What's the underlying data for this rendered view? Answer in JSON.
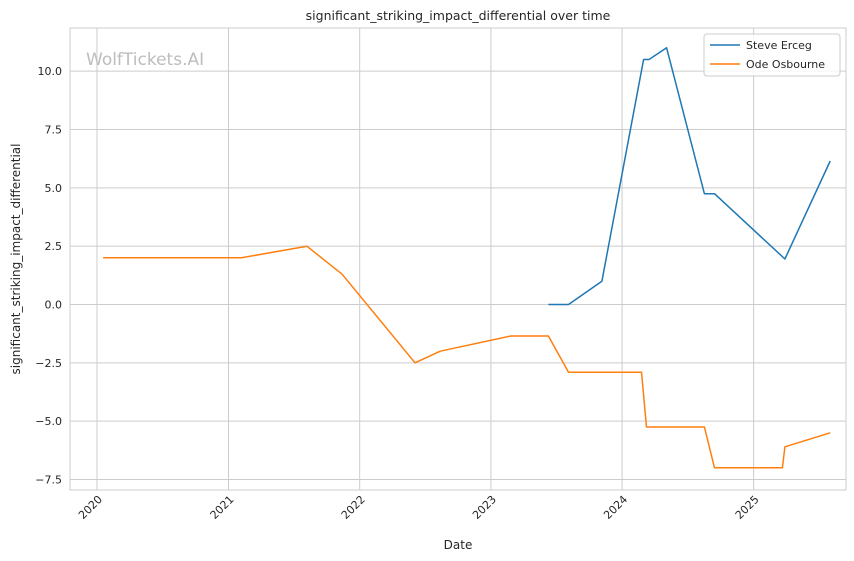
{
  "chart_data": {
    "type": "line",
    "title": "significant_striking_impact_differential over time",
    "xlabel": "Date",
    "ylabel": "significant_striking_impact_differential",
    "watermark": "WolfTickets.AI",
    "x_ticks": [
      "2020",
      "2021",
      "2022",
      "2023",
      "2024",
      "2025"
    ],
    "y_ticks": [
      "10.0",
      "7.5",
      "5.0",
      "2.5",
      "0.0",
      "−2.5",
      "−5.0",
      "−7.5"
    ],
    "xlim": [
      "2019-10-18",
      "2025-09-15"
    ],
    "ylim": [
      -7.95,
      11.85
    ],
    "grid": true,
    "legend_position": "top-right",
    "series": [
      {
        "name": "Steve Erceg",
        "color": "#1f77b4",
        "points": [
          [
            "2023-06-10",
            0.0
          ],
          [
            "2023-08-05",
            0.0
          ],
          [
            "2023-11-06",
            1.0
          ],
          [
            "2024-03-01",
            10.5
          ],
          [
            "2024-03-16",
            10.5
          ],
          [
            "2024-05-04",
            11.0
          ],
          [
            "2024-08-17",
            4.75
          ],
          [
            "2024-09-14",
            4.75
          ],
          [
            "2025-03-29",
            1.95
          ],
          [
            "2025-08-02",
            6.15
          ]
        ]
      },
      {
        "name": "Ode Osbourne",
        "color": "#ff7f0e",
        "points": [
          [
            "2020-01-18",
            2.0
          ],
          [
            "2021-02-06",
            2.0
          ],
          [
            "2021-08-07",
            2.5
          ],
          [
            "2021-11-13",
            1.3
          ],
          [
            "2022-06-04",
            -2.5
          ],
          [
            "2022-08-13",
            -2.0
          ],
          [
            "2023-02-25",
            -1.35
          ],
          [
            "2023-06-10",
            -1.35
          ],
          [
            "2023-08-05",
            -2.9
          ],
          [
            "2024-02-24",
            -2.9
          ],
          [
            "2024-03-09",
            -5.25
          ],
          [
            "2024-08-17",
            -5.25
          ],
          [
            "2024-09-14",
            -7.0
          ],
          [
            "2025-03-22",
            -7.0
          ],
          [
            "2025-03-29",
            -6.1
          ],
          [
            "2025-08-02",
            -5.5
          ]
        ]
      }
    ]
  }
}
